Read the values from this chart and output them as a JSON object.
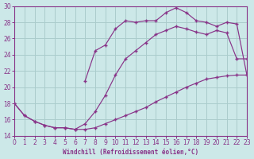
{
  "bg_color": "#cce8e8",
  "grid_color": "#aacccc",
  "line_color": "#883388",
  "xlabel": "Windchill (Refroidissement éolien,°C)",
  "xlim": [
    0,
    23
  ],
  "ylim": [
    14,
    30
  ],
  "yticks": [
    14,
    16,
    18,
    20,
    22,
    24,
    26,
    28,
    30
  ],
  "xticks": [
    0,
    1,
    2,
    3,
    4,
    5,
    6,
    7,
    8,
    9,
    10,
    11,
    12,
    13,
    14,
    15,
    16,
    17,
    18,
    19,
    20,
    21,
    22,
    23
  ],
  "curve1_x": [
    0,
    1,
    2,
    3,
    4,
    5,
    6,
    7,
    8,
    9,
    10,
    11,
    12,
    13,
    14,
    15,
    16,
    17,
    18,
    19,
    20,
    21,
    22,
    23
  ],
  "curve1_y": [
    18.0,
    16.5,
    15.8,
    15.3,
    15.0,
    15.0,
    14.8,
    14.8,
    15.0,
    15.5,
    16.0,
    16.5,
    17.0,
    17.5,
    18.2,
    18.8,
    19.4,
    20.0,
    20.5,
    21.0,
    21.2,
    21.4,
    21.5,
    21.5
  ],
  "curve2_x": [
    0,
    1,
    2,
    3,
    4,
    5,
    6,
    7,
    8,
    9,
    10,
    11,
    12,
    13,
    14,
    15,
    16,
    17,
    18,
    19,
    20,
    21,
    22,
    23
  ],
  "curve2_y": [
    18.0,
    16.5,
    15.8,
    15.3,
    15.0,
    15.0,
    14.8,
    15.5,
    17.0,
    19.0,
    21.5,
    23.5,
    24.5,
    25.5,
    26.5,
    27.0,
    27.5,
    27.2,
    26.8,
    26.5,
    27.0,
    26.7,
    23.5,
    23.5
  ],
  "curve3_x": [
    7,
    8,
    9,
    10,
    11,
    12,
    13,
    14,
    15,
    16,
    17,
    18,
    19,
    20,
    21,
    22,
    23
  ],
  "curve3_y": [
    20.8,
    24.5,
    25.2,
    27.2,
    28.2,
    28.0,
    28.2,
    28.2,
    29.2,
    29.8,
    29.2,
    28.2,
    28.0,
    27.5,
    28.0,
    27.8,
    21.5
  ]
}
